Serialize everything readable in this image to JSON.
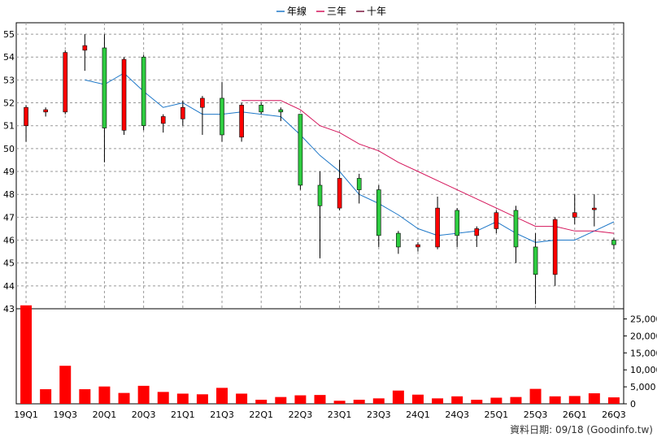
{
  "legend": [
    {
      "label": "年線",
      "color": "#1f78c8"
    },
    {
      "label": "三年",
      "color": "#d4145a"
    },
    {
      "label": "十年",
      "color": "#7a1840"
    }
  ],
  "footer_note": "資料日期: 09/18  (Goodinfo.tw)",
  "colors": {
    "up": "#ff0000",
    "down": "#2ecc40",
    "volume": "#ff0000",
    "grid": "#999999"
  },
  "chart_data": {
    "type": "candlestick",
    "price_axis": {
      "min": 43,
      "max": 55.5,
      "ticks": [
        43,
        44,
        45,
        46,
        47,
        48,
        49,
        50,
        51,
        52,
        53,
        54,
        55
      ]
    },
    "volume_axis": {
      "min": 0,
      "max": 28000,
      "ticks": [
        0,
        5000,
        10000,
        15000,
        20000,
        25000
      ],
      "tick_labels": [
        "0",
        "5,000",
        "10,000",
        "15,000",
        "20,000",
        "25,000"
      ]
    },
    "x_tick_labels": [
      "19Q1",
      "19Q3",
      "20Q1",
      "20Q3",
      "21Q1",
      "21Q3",
      "22Q1",
      "22Q3",
      "23Q1",
      "23Q3",
      "24Q1",
      "24Q3",
      "25Q1",
      "25Q3",
      "26Q1",
      "26Q3"
    ],
    "candles": [
      {
        "o": 51.0,
        "h": 51.9,
        "l": 50.3,
        "c": 51.8,
        "v": 29000
      },
      {
        "o": 51.6,
        "h": 51.8,
        "l": 51.4,
        "c": 51.7,
        "v": 4300
      },
      {
        "o": 51.6,
        "h": 54.3,
        "l": 51.5,
        "c": 54.2,
        "v": 11200
      },
      {
        "o": 54.3,
        "h": 55.0,
        "l": 53.4,
        "c": 54.5,
        "v": 4300
      },
      {
        "o": 54.4,
        "h": 55.0,
        "l": 49.4,
        "c": 50.9,
        "v": 5100
      },
      {
        "o": 50.8,
        "h": 54.0,
        "l": 50.6,
        "c": 53.9,
        "v": 3200
      },
      {
        "o": 54.0,
        "h": 54.1,
        "l": 50.8,
        "c": 51.0,
        "v": 5300
      },
      {
        "o": 51.1,
        "h": 51.5,
        "l": 50.7,
        "c": 51.4,
        "v": 3500
      },
      {
        "o": 51.3,
        "h": 52.1,
        "l": 51.0,
        "c": 51.8,
        "v": 3000
      },
      {
        "o": 51.8,
        "h": 52.3,
        "l": 50.6,
        "c": 52.2,
        "v": 2800
      },
      {
        "o": 52.2,
        "h": 52.9,
        "l": 50.3,
        "c": 50.6,
        "v": 4700
      },
      {
        "o": 50.5,
        "h": 52.0,
        "l": 50.3,
        "c": 51.9,
        "v": 3000
      },
      {
        "o": 51.9,
        "h": 52.0,
        "l": 51.5,
        "c": 51.6,
        "v": 1200
      },
      {
        "o": 51.7,
        "h": 51.8,
        "l": 51.2,
        "c": 51.6,
        "v": 2000
      },
      {
        "o": 51.5,
        "h": 51.5,
        "l": 48.2,
        "c": 48.4,
        "v": 2500
      },
      {
        "o": 48.4,
        "h": 49.0,
        "l": 45.2,
        "c": 47.5,
        "v": 2600
      },
      {
        "o": 47.4,
        "h": 49.5,
        "l": 47.3,
        "c": 48.7,
        "v": 900
      },
      {
        "o": 48.7,
        "h": 48.9,
        "l": 47.6,
        "c": 48.2,
        "v": 1200
      },
      {
        "o": 48.2,
        "h": 48.4,
        "l": 45.7,
        "c": 46.2,
        "v": 1600
      },
      {
        "o": 46.3,
        "h": 46.4,
        "l": 45.4,
        "c": 45.7,
        "v": 3900
      },
      {
        "o": 45.7,
        "h": 45.9,
        "l": 45.5,
        "c": 45.8,
        "v": 2700
      },
      {
        "o": 45.7,
        "h": 47.9,
        "l": 45.6,
        "c": 47.4,
        "v": 1600
      },
      {
        "o": 47.3,
        "h": 47.4,
        "l": 45.7,
        "c": 46.2,
        "v": 2200
      },
      {
        "o": 46.2,
        "h": 46.6,
        "l": 45.7,
        "c": 46.5,
        "v": 1200
      },
      {
        "o": 46.5,
        "h": 47.3,
        "l": 46.3,
        "c": 47.2,
        "v": 1800
      },
      {
        "o": 47.3,
        "h": 47.5,
        "l": 45.0,
        "c": 45.7,
        "v": 2000
      },
      {
        "o": 45.7,
        "h": 46.3,
        "l": 43.2,
        "c": 44.5,
        "v": 4400
      },
      {
        "o": 44.5,
        "h": 47.0,
        "l": 44.0,
        "c": 46.9,
        "v": 2200
      },
      {
        "o": 47.0,
        "h": 48.0,
        "l": 46.7,
        "c": 47.2,
        "v": 2300
      },
      {
        "o": 47.4,
        "h": 48.0,
        "l": 46.6,
        "c": 47.4,
        "v": 3100
      },
      {
        "o": 46.0,
        "h": 46.1,
        "l": 45.6,
        "c": 45.8,
        "v": 1900
      }
    ],
    "series": [
      {
        "name": "年線",
        "values": [
          null,
          null,
          null,
          53.0,
          52.8,
          53.3,
          52.5,
          51.8,
          52.0,
          51.5,
          51.5,
          51.6,
          51.5,
          51.4,
          50.6,
          49.7,
          49.0,
          48.0,
          47.6,
          47.1,
          46.5,
          46.2,
          46.3,
          46.4,
          46.8,
          46.3,
          45.9,
          46.0,
          46.0,
          46.4,
          46.8
        ]
      },
      {
        "name": "三年",
        "values": [
          null,
          null,
          null,
          null,
          null,
          null,
          null,
          null,
          null,
          null,
          null,
          52.1,
          52.1,
          52.1,
          51.7,
          51.0,
          50.7,
          50.2,
          49.9,
          49.4,
          49.0,
          48.6,
          48.2,
          47.8,
          47.4,
          47.0,
          46.6,
          46.6,
          46.4,
          46.4,
          46.3
        ]
      },
      {
        "name": "十年",
        "values": []
      }
    ]
  }
}
